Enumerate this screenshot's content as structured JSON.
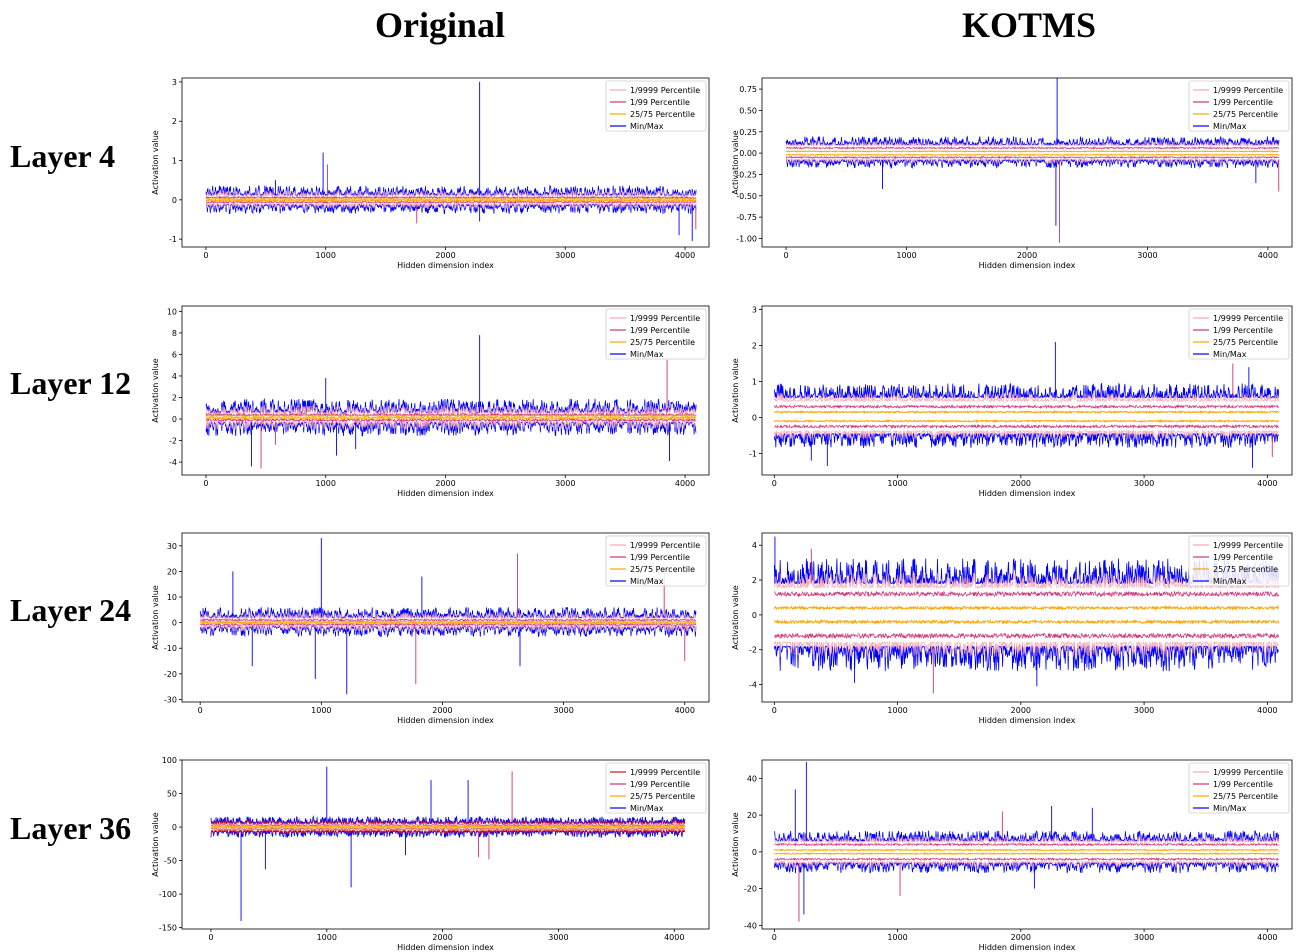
{
  "headers": {
    "columns": [
      "Original",
      "KOTMS"
    ],
    "rows": [
      "Layer 4",
      "Layer 12",
      "Layer 24",
      "Layer 36"
    ]
  },
  "colors": {
    "p9999": "#f4a6b6",
    "p99": "#cc3377",
    "p2575": "#ffa500",
    "minmax": "#0000ff",
    "p9999_layer36_original": "#dd1111"
  },
  "chart_data": [
    {
      "id": "original-layer-4",
      "type": "line",
      "row": 0,
      "col": 0,
      "xlabel": "Hidden dimension index",
      "ylabel": "Activation value",
      "xlim": [
        -200,
        4200
      ],
      "ylim": [
        -1.2,
        3.1
      ],
      "xticks": [
        0,
        1000,
        2000,
        3000,
        4000
      ],
      "yticks": [
        -1,
        0,
        1,
        2,
        3
      ],
      "legend": [
        "1/9999 Percentile",
        "1/99 Percentile",
        "25/75 Percentile",
        "Min/Max"
      ],
      "legend_position": "top-right",
      "bands": {
        "max": 0.12,
        "min": -0.12,
        "p99_hi": 0.06,
        "p99_lo": -0.06,
        "p25": -0.02,
        "p75": 0.02
      },
      "noise": {
        "max": 0.15,
        "min": 0.15
      },
      "spikes": [
        [
          978,
          1.2
        ],
        [
          1015,
          0.9
        ],
        [
          2285,
          3.0
        ],
        [
          2285,
          -0.55
        ],
        [
          1760,
          -0.6
        ],
        [
          4060,
          -1.05
        ],
        [
          3950,
          -0.9
        ],
        [
          4090,
          -0.75
        ],
        [
          580,
          0.5
        ]
      ]
    },
    {
      "id": "kotms-layer-4",
      "type": "line",
      "row": 0,
      "col": 1,
      "xlabel": "Hidden dimension index",
      "ylabel": "Activation value",
      "xlim": [
        -200,
        4200
      ],
      "ylim": [
        -1.1,
        0.88
      ],
      "xticks": [
        0,
        1000,
        2000,
        3000,
        4000
      ],
      "yticks": [
        -1.0,
        -0.75,
        -0.5,
        -0.25,
        0.0,
        0.25,
        0.5,
        0.75
      ],
      "legend": [
        "1/9999 Percentile",
        "1/99 Percentile",
        "25/75 Percentile",
        "Min/Max"
      ],
      "legend_position": "top-right",
      "bands": {
        "max": 0.1,
        "min": -0.08,
        "p99_hi": 0.06,
        "p99_lo": -0.05,
        "p25": -0.02,
        "p75": 0.02
      },
      "noise": {
        "max": 0.06,
        "min": 0.06
      },
      "spikes": [
        [
          2250,
          0.9
        ],
        [
          2270,
          -1.05
        ],
        [
          2240,
          -0.85
        ],
        [
          800,
          -0.42
        ],
        [
          4090,
          -0.45
        ],
        [
          3900,
          -0.35
        ]
      ]
    },
    {
      "id": "original-layer-12",
      "type": "line",
      "row": 1,
      "col": 0,
      "xlabel": "Hidden dimension index",
      "ylabel": "Activation value",
      "xlim": [
        -200,
        4200
      ],
      "ylim": [
        -5.2,
        10.5
      ],
      "xticks": [
        0,
        1000,
        2000,
        3000,
        4000
      ],
      "yticks": [
        -4,
        -2,
        0,
        2,
        4,
        6,
        8,
        10
      ],
      "legend": [
        "1/9999 Percentile",
        "1/99 Percentile",
        "25/75 Percentile",
        "Min/Max"
      ],
      "legend_position": "top-right",
      "bands": {
        "max": 0.6,
        "min": -0.3,
        "p99_hi": 0.4,
        "p99_lo": -0.1,
        "p25": 0.1,
        "p75": 0.3
      },
      "noise": {
        "max": 0.8,
        "min": 0.8
      },
      "spikes": [
        [
          2285,
          7.8
        ],
        [
          3850,
          5.5
        ],
        [
          1000,
          3.8
        ],
        [
          380,
          -4.4
        ],
        [
          460,
          -4.6
        ],
        [
          1090,
          -3.4
        ],
        [
          3870,
          -3.9
        ],
        [
          580,
          -2.4
        ],
        [
          1250,
          -2.8
        ]
      ]
    },
    {
      "id": "kotms-layer-12",
      "type": "line",
      "row": 1,
      "col": 1,
      "xlabel": "Hidden dimension index",
      "ylabel": "Activation value",
      "xlim": [
        -100,
        4200
      ],
      "ylim": [
        -1.6,
        3.1
      ],
      "xticks": [
        0,
        1000,
        2000,
        3000,
        4000
      ],
      "yticks": [
        -1,
        0,
        1,
        2,
        3
      ],
      "legend": [
        "1/9999 Percentile",
        "1/99 Percentile",
        "25/75 Percentile",
        "Min/Max"
      ],
      "legend_position": "top-right",
      "bands": {
        "max": 0.55,
        "min": -0.45,
        "p99_hi": 0.3,
        "p99_lo": -0.25,
        "p25": -0.1,
        "p75": 0.15
      },
      "noise": {
        "max": 0.25,
        "min": 0.25
      },
      "spikes": [
        [
          2280,
          2.1
        ],
        [
          3720,
          1.5
        ],
        [
          3850,
          1.4
        ],
        [
          3880,
          -1.4
        ],
        [
          4040,
          -1.1
        ],
        [
          430,
          -1.35
        ],
        [
          300,
          -1.2
        ]
      ]
    },
    {
      "id": "original-layer-24",
      "type": "line",
      "row": 2,
      "col": 0,
      "xlabel": "Hidden dimension index",
      "ylabel": "Activation value",
      "xlim": [
        -150,
        4200
      ],
      "ylim": [
        -31,
        35
      ],
      "xticks": [
        0,
        1000,
        2000,
        3000,
        4000
      ],
      "yticks": [
        -30,
        -20,
        -10,
        0,
        10,
        20,
        30
      ],
      "legend": [
        "1/9999 Percentile",
        "1/99 Percentile",
        "25/75 Percentile",
        "Min/Max"
      ],
      "legend_position": "top-right",
      "bands": {
        "max": 2.0,
        "min": -1.5,
        "p99_hi": 1.0,
        "p99_lo": -0.8,
        "p25": -0.2,
        "p75": 0.3
      },
      "noise": {
        "max": 2.5,
        "min": 2.5
      },
      "spikes": [
        [
          1000,
          33
        ],
        [
          2620,
          27
        ],
        [
          270,
          20
        ],
        [
          1830,
          18
        ],
        [
          3830,
          20
        ],
        [
          1210,
          -28
        ],
        [
          950,
          -22
        ],
        [
          1780,
          -24
        ],
        [
          430,
          -17
        ],
        [
          2640,
          -17
        ],
        [
          4000,
          -15
        ]
      ]
    },
    {
      "id": "kotms-layer-24",
      "type": "line",
      "row": 2,
      "col": 1,
      "xlabel": "Hidden dimension index",
      "ylabel": "Activation value",
      "xlim": [
        -100,
        4200
      ],
      "ylim": [
        -5,
        4.7
      ],
      "xticks": [
        0,
        1000,
        2000,
        3000,
        4000
      ],
      "yticks": [
        -4,
        -2,
        0,
        2,
        4
      ],
      "legend": [
        "1/9999 Percentile",
        "1/99 Percentile",
        "25/75 Percentile",
        "Min/Max"
      ],
      "legend_position": "top-right",
      "bands": {
        "max": 1.8,
        "min": -1.8,
        "p99_hi": 1.2,
        "p99_lo": -1.2,
        "p25": -0.4,
        "p75": 0.4
      },
      "noise": {
        "max": 0.9,
        "min": 0.9
      },
      "spikes": [
        [
          5,
          4.5
        ],
        [
          1290,
          -4.5
        ],
        [
          2130,
          -4.1
        ],
        [
          650,
          -3.9
        ],
        [
          300,
          3.8
        ]
      ]
    },
    {
      "id": "original-layer-36",
      "type": "line",
      "row": 3,
      "col": 0,
      "xlabel": "Hidden dimension index",
      "ylabel": "Activation value",
      "xlim": [
        -250,
        4300
      ],
      "ylim": [
        -152,
        100
      ],
      "xticks": [
        0,
        1000,
        2000,
        3000,
        4000
      ],
      "yticks": [
        -150,
        -100,
        -50,
        0,
        50,
        100
      ],
      "legend": [
        "1/9999 Percentile",
        "1/99 Percentile",
        "25/75 Percentile",
        "Min/Max"
      ],
      "legend_position": "top-right",
      "legend_first_color": "#dd1111",
      "bands": {
        "max": 6,
        "min": -6,
        "p99_hi": 3,
        "p99_lo": -3,
        "p25": -1,
        "p75": 1
      },
      "noise": {
        "max": 6,
        "min": 6
      },
      "spikes": [
        [
          1000,
          90
        ],
        [
          2600,
          83
        ],
        [
          260,
          -140
        ],
        [
          1210,
          -90
        ],
        [
          2400,
          -48
        ],
        [
          2220,
          70
        ],
        [
          1900,
          70
        ],
        [
          2310,
          -45
        ],
        [
          470,
          -63
        ],
        [
          1680,
          -42
        ]
      ]
    },
    {
      "id": "kotms-layer-36",
      "type": "line",
      "row": 3,
      "col": 1,
      "xlabel": "Hidden dimension index",
      "ylabel": "Activation value",
      "xlim": [
        -100,
        4200
      ],
      "ylim": [
        -42,
        50
      ],
      "xticks": [
        0,
        1000,
        2000,
        3000,
        4000
      ],
      "yticks": [
        -40,
        -20,
        0,
        20,
        40
      ],
      "legend": [
        "1/9999 Percentile",
        "1/99 Percentile",
        "25/75 Percentile",
        "Min/Max"
      ],
      "legend_position": "top-right",
      "bands": {
        "max": 6,
        "min": -6,
        "p99_hi": 4,
        "p99_lo": -4,
        "p25": -1,
        "p75": 1
      },
      "noise": {
        "max": 3.5,
        "min": 3.5
      },
      "spikes": [
        [
          260,
          49
        ],
        [
          200,
          -38
        ],
        [
          240,
          -34
        ],
        [
          170,
          34
        ],
        [
          1850,
          22
        ],
        [
          2250,
          25
        ],
        [
          2580,
          24
        ],
        [
          1020,
          -24
        ],
        [
          2110,
          -20
        ]
      ]
    }
  ]
}
